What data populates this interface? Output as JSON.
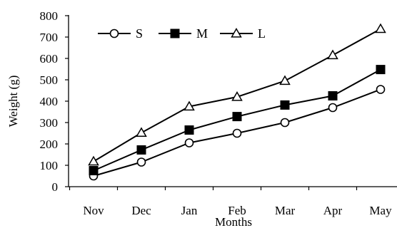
{
  "chart_data": {
    "type": "line",
    "xlabel": "Months",
    "ylabel": "Weight (g)",
    "categories": [
      "Nov",
      "Dec",
      "Jan",
      "Feb",
      "Mar",
      "Apr",
      "May"
    ],
    "ylim": [
      0,
      800
    ],
    "yticks": [
      0,
      100,
      200,
      300,
      400,
      500,
      600,
      700,
      800
    ],
    "grid": false,
    "legend_position": "top-left",
    "series": [
      {
        "name": "S",
        "marker": "circle-open",
        "values": [
          50,
          115,
          205,
          250,
          300,
          370,
          455
        ]
      },
      {
        "name": "M",
        "marker": "square-filled",
        "values": [
          75,
          172,
          265,
          328,
          382,
          425,
          548
        ]
      },
      {
        "name": "L",
        "marker": "triangle-open",
        "values": [
          118,
          252,
          375,
          420,
          495,
          615,
          738
        ]
      }
    ],
    "colors": {
      "line": "#000000",
      "background": "#ffffff"
    }
  }
}
